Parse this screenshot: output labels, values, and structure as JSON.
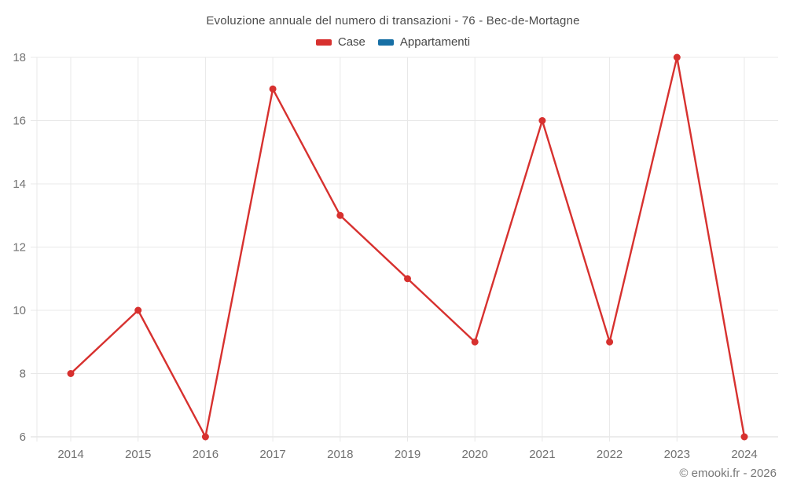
{
  "title": "Evoluzione annuale del numero di transazioni - 76 - Bec-de-Mortagne",
  "watermark": "© emooki.fr - 2026",
  "legend": {
    "items": [
      {
        "label": "Case",
        "color": "#d7312f"
      },
      {
        "label": "Appartamenti",
        "color": "#176fa5"
      }
    ]
  },
  "colors": {
    "case_series": "#d7312f",
    "appartamenti_series": "#176fa5",
    "grid": "#e8e8e8",
    "axis_line": "#d9d9d9",
    "tick_text": "#717171",
    "title_text": "#4c4c4c",
    "watermark_text": "#767676"
  },
  "chart_data": {
    "type": "line",
    "title": "Evoluzione annuale del numero di transazioni - 76 - Bec-de-Mortagne",
    "xlabel": "",
    "ylabel": "",
    "categories": [
      "2014",
      "2015",
      "2016",
      "2017",
      "2018",
      "2019",
      "2020",
      "2021",
      "2022",
      "2023",
      "2024"
    ],
    "series": [
      {
        "name": "Case",
        "color": "#d7312f",
        "values": [
          8,
          10,
          6,
          17,
          13,
          11,
          9,
          16,
          9,
          18,
          6
        ]
      },
      {
        "name": "Appartamenti",
        "color": "#176fa5",
        "values": []
      }
    ],
    "ylim": [
      6,
      18
    ],
    "yticks": [
      6,
      8,
      10,
      12,
      14,
      16,
      18
    ],
    "grid": true,
    "legend_position": "top",
    "marker": "circle"
  }
}
